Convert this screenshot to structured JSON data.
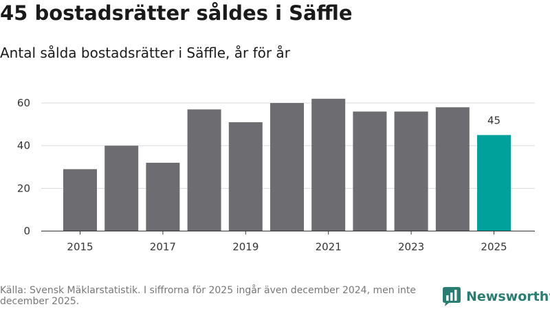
{
  "title": "45 bostadsrätter såldes i Säffle",
  "subtitle": "Antal sålda bostadsrätter i Säffle, år för år",
  "footer": "Källa: Svensk Mäklarstatistik. I siffrorna för 2025 ingår även december 2024, men inte december 2025.",
  "logo": {
    "text": "Newsworthy",
    "icon": "bar-chart-logo-icon",
    "color": "#2a7d72"
  },
  "chart_data": {
    "type": "bar",
    "title": "45 bostadsrätter såldes i Säffle",
    "subtitle": "Antal sålda bostadsrätter i Säffle, år för år",
    "categories": [
      "2015",
      "2016",
      "2017",
      "2018",
      "2019",
      "2020",
      "2021",
      "2022",
      "2023",
      "2024",
      "2025"
    ],
    "values": [
      29,
      40,
      32,
      57,
      51,
      60,
      62,
      56,
      56,
      58,
      45
    ],
    "x_tick_labels": [
      "2015",
      "2017",
      "2019",
      "2021",
      "2023",
      "2025"
    ],
    "y_ticks": [
      0,
      20,
      40,
      60
    ],
    "ylim": [
      0,
      62
    ],
    "xlabel": "",
    "ylabel": "",
    "grid": true,
    "annotations": [
      {
        "category": "2025",
        "label": "45"
      }
    ],
    "colors": {
      "default": "#6d6c71",
      "highlight": "#00a19a"
    },
    "highlight_category": "2025"
  }
}
